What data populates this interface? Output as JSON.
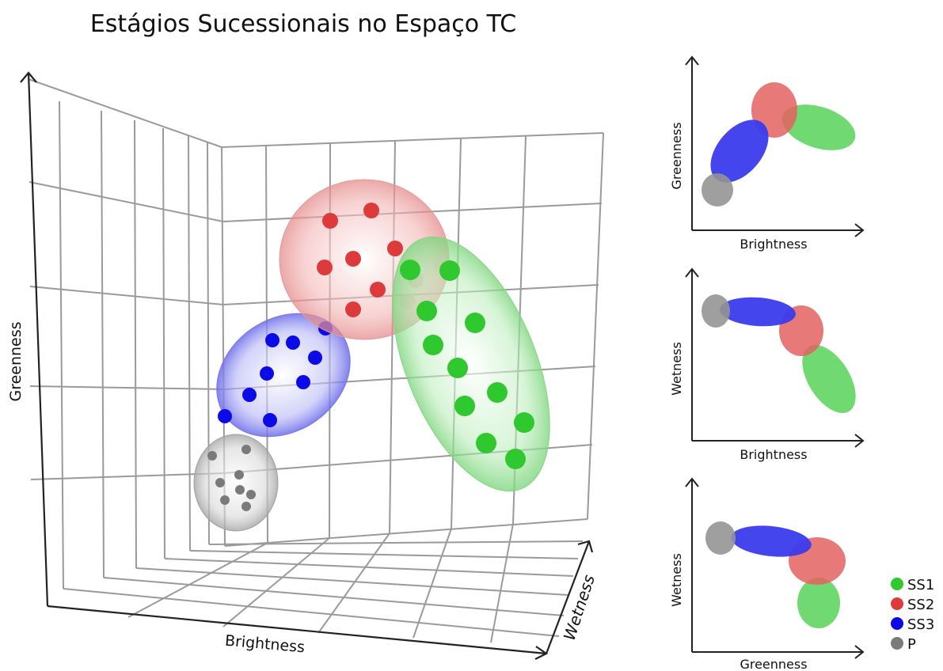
{
  "title": "Estágios Sucessionais no Espaço TC",
  "main_plot": {
    "x_label": "Brightness",
    "y_label": "Greenness",
    "z_label": "Wetness"
  },
  "insets": [
    {
      "x_label": "Brightness",
      "y_label": "Greenness"
    },
    {
      "x_label": "Brightness",
      "y_label": "Wetness"
    },
    {
      "x_label": "Greenness",
      "y_label": "Wetness"
    }
  ],
  "legend": [
    {
      "label": "SS1",
      "color": "#2fc82f"
    },
    {
      "label": "SS2",
      "color": "#dd3b3b"
    },
    {
      "label": "SS3",
      "color": "#0b0be8"
    },
    {
      "label": "P",
      "color": "#7a7a7a"
    }
  ],
  "colors": {
    "ss1": "#2fc82f",
    "ss2": "#dd3b3b",
    "ss3": "#0b0be8",
    "p": "#7a7a7a",
    "grid": "#9a9a9a",
    "axis": "#222222"
  }
}
